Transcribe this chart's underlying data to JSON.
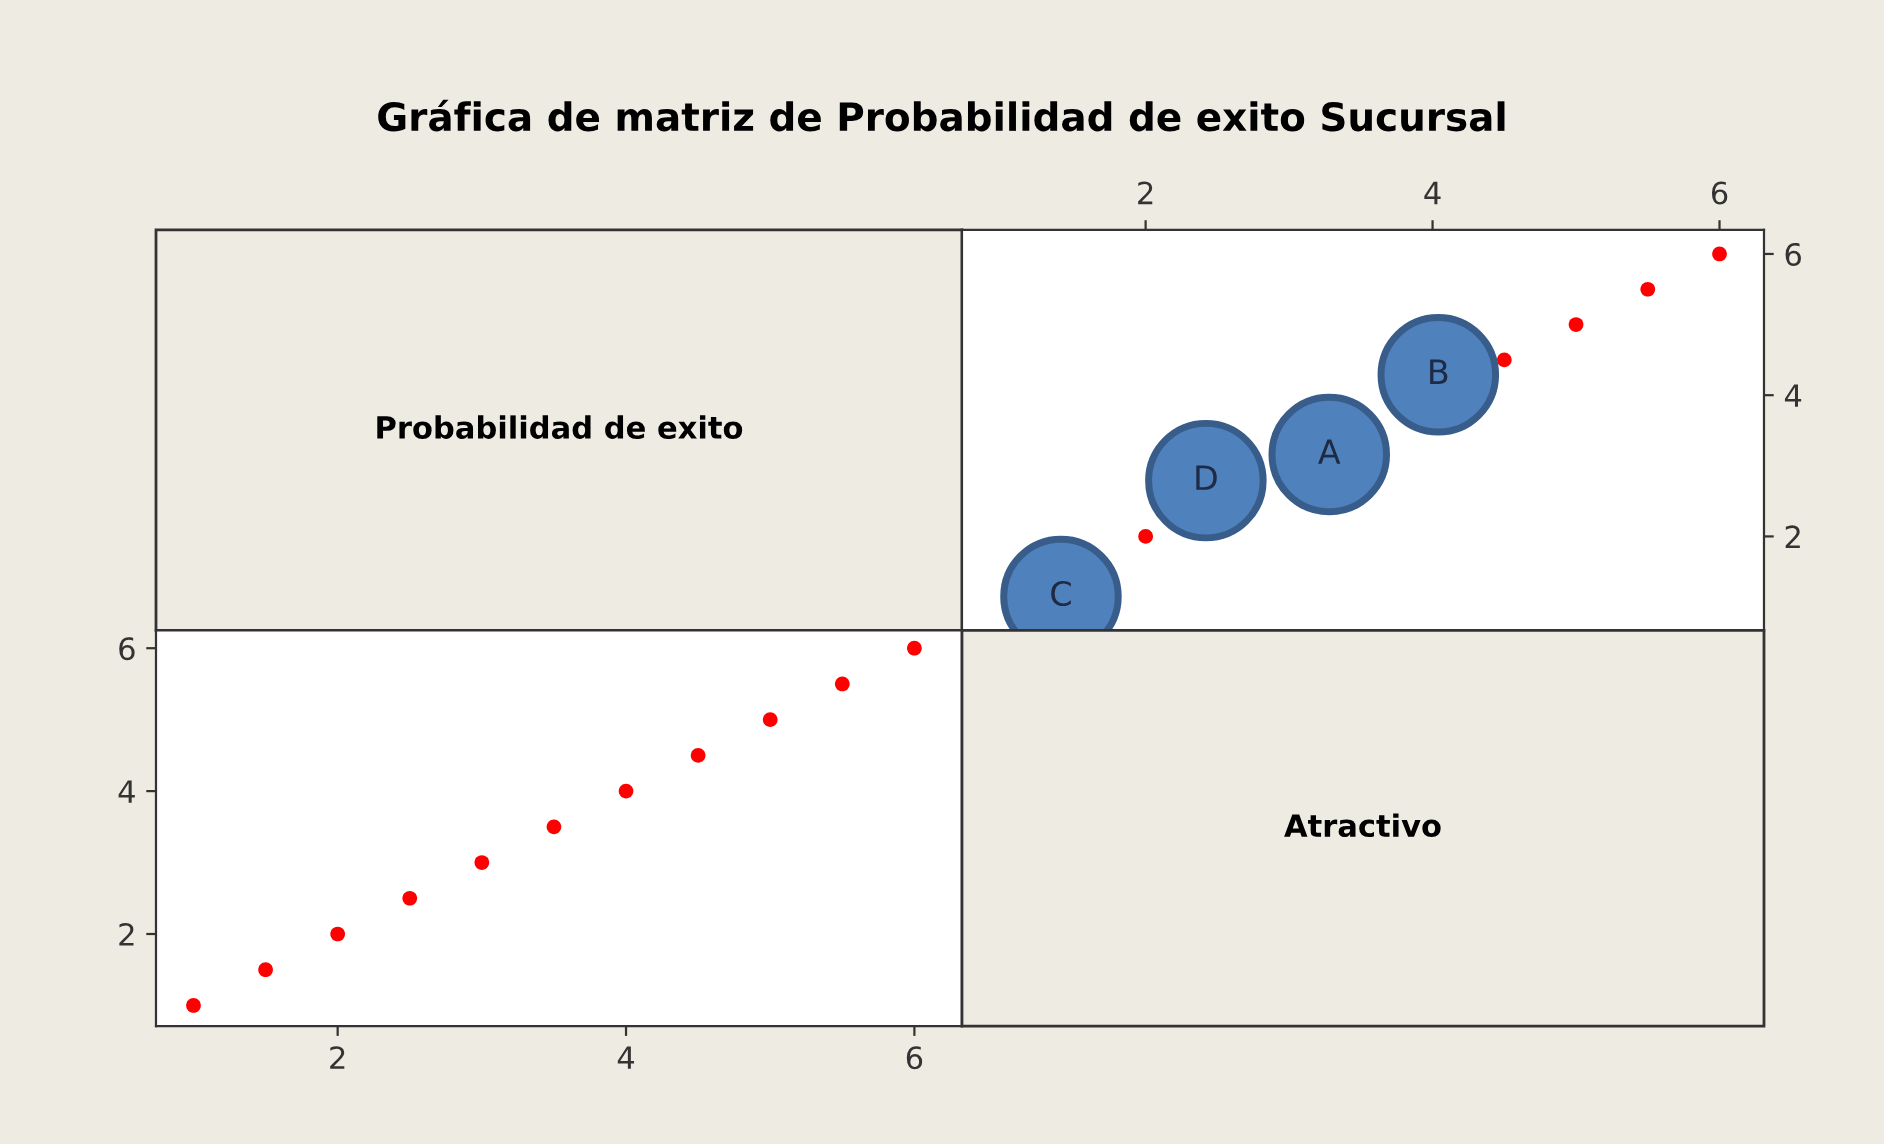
{
  "chart_data": [
    {
      "type": "other",
      "title": "Gráfica de matriz de Probabilidad de exito Sucursal",
      "annotations": [
        "Probabilidad de exito"
      ]
    },
    {
      "type": "scatter",
      "xlim": [
        0.72,
        6.31
      ],
      "xticks": [
        2,
        4,
        6
      ],
      "ylim": [
        0.67,
        6.34
      ],
      "yticks": [
        2,
        4,
        6
      ],
      "grid": false,
      "marker": "circle",
      "series": [
        {
          "type": "scatter",
          "color": "#ff0000",
          "x": [
            2,
            2.5,
            3,
            3.5,
            4,
            4.5,
            5,
            5.5,
            6
          ],
          "values": [
            2,
            null,
            null,
            null,
            null,
            4.5,
            5,
            5.5,
            6
          ]
        },
        {
          "type": "bubble",
          "color": "#4f81bd",
          "x": [
            1.41,
            2.42,
            3.28,
            4.04
          ],
          "values": [
            1.15,
            2.79,
            3.16,
            4.29
          ],
          "sizes": [
            1,
            1,
            1,
            1
          ]
        }
      ],
      "annotations": [
        {
          "text": "C",
          "x": 1.41,
          "y": 1.15
        },
        {
          "text": "D",
          "x": 2.42,
          "y": 2.79
        },
        {
          "text": "A",
          "x": 3.28,
          "y": 3.16
        },
        {
          "text": "B",
          "x": 4.04,
          "y": 4.29
        }
      ]
    },
    {
      "type": "scatter",
      "xlim": [
        0.74,
        6.33
      ],
      "xticks": [
        2,
        4,
        6
      ],
      "ylim": [
        0.71,
        6.25
      ],
      "yticks": [
        2,
        4,
        6
      ],
      "grid": false,
      "marker": "circle",
      "series": [
        {
          "type": "scatter",
          "color": "#ff0000",
          "x": [
            1,
            1.5,
            2,
            2.5,
            3,
            3.5,
            4,
            4.5,
            5,
            5.5,
            6
          ],
          "values": [
            1,
            1.5,
            2,
            2.5,
            3,
            3.5,
            4,
            4.5,
            5,
            5.5,
            6
          ]
        }
      ]
    },
    {
      "type": "other",
      "annotations": [
        "Atractivo"
      ]
    }
  ]
}
